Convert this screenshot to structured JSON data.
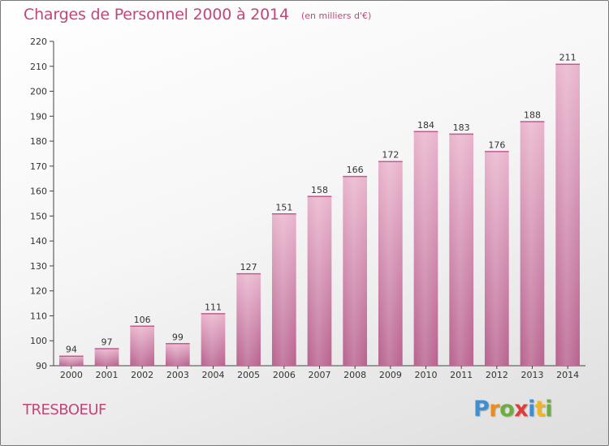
{
  "header": {
    "title": "Charges de Personnel 2000 à 2014",
    "subtitle": "(en milliers d'€)"
  },
  "footer": {
    "place": "TRESBOEUF",
    "logo": "Proxiti"
  },
  "colors": {
    "bar": "#d98ab2",
    "bar_light": "#eab6cf",
    "accent": "#c2467a"
  },
  "chart_data": {
    "type": "bar",
    "categories": [
      "2000",
      "2001",
      "2002",
      "2003",
      "2004",
      "2005",
      "2006",
      "2007",
      "2008",
      "2009",
      "2010",
      "2011",
      "2012",
      "2013",
      "2014"
    ],
    "values": [
      94,
      97,
      106,
      99,
      111,
      127,
      151,
      158,
      166,
      172,
      184,
      183,
      176,
      188,
      211
    ],
    "ylim": [
      90,
      220
    ],
    "yticks": [
      90,
      100,
      110,
      120,
      130,
      140,
      150,
      160,
      170,
      180,
      190,
      200,
      210,
      220
    ],
    "grid": false,
    "data_labels": true
  }
}
